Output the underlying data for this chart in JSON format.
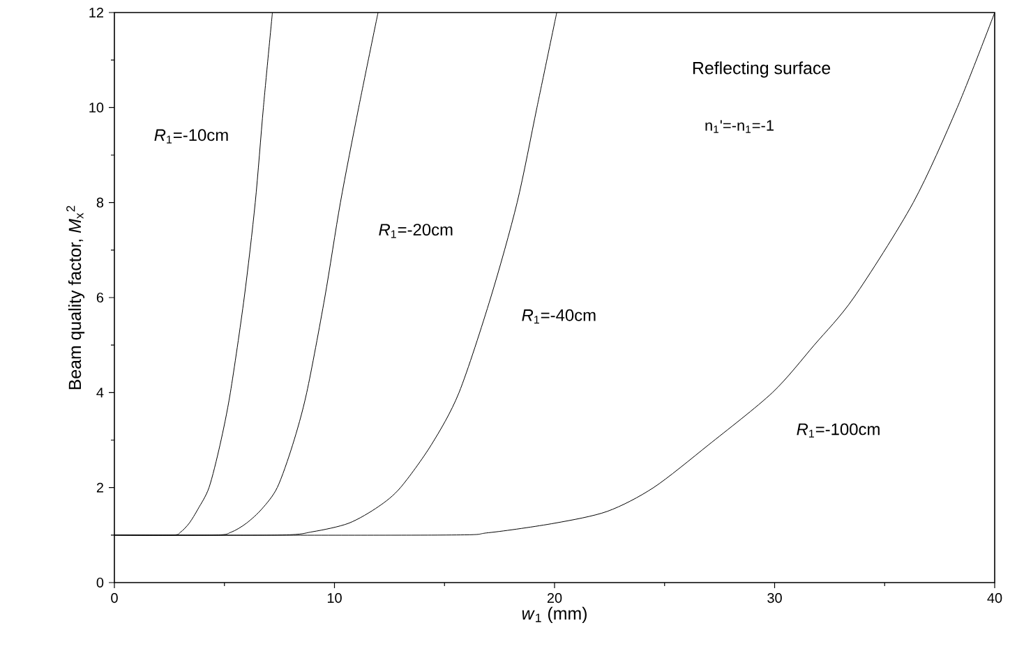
{
  "chart_data": {
    "type": "line",
    "xlabel": "*w*$_{1}$ (mm)",
    "ylabel": "Beam quality factor, *M*$_{x}$$^{2}$",
    "xlim": [
      0,
      40
    ],
    "ylim": [
      0,
      12
    ],
    "xticks": [
      0,
      10,
      20,
      30,
      40
    ],
    "yticks": [
      0,
      2,
      4,
      6,
      8,
      10,
      12
    ],
    "grid": false,
    "marker": "none",
    "line_style": "solid",
    "series": [
      {
        "color": "#000000",
        "x": [
          0,
          2.6,
          3.0,
          3.4,
          3.8,
          4.3,
          4.8,
          5.27,
          5.9,
          6.4,
          6.77,
          7.18
        ],
        "values": [
          1,
          1,
          1.06,
          1.25,
          1.55,
          2,
          2.9,
          4,
          6,
          8,
          10,
          12
        ]
      },
      {
        "color": "#000000",
        "x": [
          0,
          4.5,
          5.3,
          6.0,
          6.7,
          7.4,
          8.1,
          8.74,
          9.56,
          10.27,
          11.1,
          11.98
        ],
        "values": [
          1,
          1,
          1.06,
          1.25,
          1.55,
          2,
          2.9,
          4,
          6,
          8,
          10,
          12
        ]
      },
      {
        "color": "#000000",
        "x": [
          0,
          7.4,
          9.0,
          10.65,
          12.0,
          13.0,
          14.4,
          15.66,
          17.1,
          18.3,
          19.2,
          20.1
        ],
        "values": [
          1,
          1,
          1.07,
          1.25,
          1.6,
          2,
          2.9,
          4,
          6,
          8,
          10,
          12
        ]
      },
      {
        "color": "#000000",
        "x": [
          0,
          14.8,
          17,
          20,
          22.4,
          24.5,
          27,
          29.9,
          31.8,
          33.6,
          36.3,
          38.3,
          40
        ],
        "values": [
          1,
          1,
          1.05,
          1.25,
          1.5,
          2,
          2.9,
          4,
          5,
          6,
          8,
          10,
          12
        ]
      }
    ],
    "annotations": [
      "*R*$_{1}$=-10cm",
      "*R*$_{1}$=-20cm",
      "*R*$_{1}$=-40cm",
      "*R*$_{1}$=-100cm",
      "Reflecting surface",
      "n$_{1}$'=-n$_{1}$=-1"
    ]
  }
}
